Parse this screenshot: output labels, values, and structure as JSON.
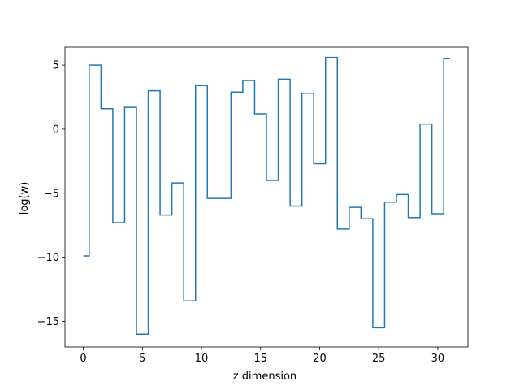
{
  "chart_data": {
    "type": "line",
    "drawstyle": "steps-mid",
    "title": "",
    "xlabel": "z dimension",
    "ylabel": "log(w)",
    "xlim": [
      -1.55,
      32.55
    ],
    "ylim": [
      -17.0,
      6.4
    ],
    "xticks": [
      0,
      5,
      10,
      15,
      20,
      25,
      30
    ],
    "yticks": [
      -15,
      -10,
      -5,
      0,
      5
    ],
    "grid": false,
    "line_color": "#1f77b4",
    "x": [
      0,
      1,
      2,
      3,
      4,
      5,
      6,
      7,
      8,
      9,
      10,
      11,
      12,
      13,
      14,
      15,
      16,
      17,
      18,
      19,
      20,
      21,
      22,
      23,
      24,
      25,
      26,
      27,
      28,
      29,
      30,
      31
    ],
    "y": [
      -9.9,
      5.0,
      1.6,
      -7.3,
      1.7,
      -16.0,
      3.0,
      -6.7,
      -4.2,
      -13.4,
      3.4,
      -5.4,
      -5.4,
      2.9,
      3.8,
      1.2,
      -4.0,
      3.9,
      -6.0,
      2.8,
      -2.7,
      5.6,
      -7.8,
      -6.1,
      -7.0,
      -15.5,
      -5.7,
      -5.1,
      -6.9,
      0.4,
      -6.6,
      5.5
    ]
  }
}
